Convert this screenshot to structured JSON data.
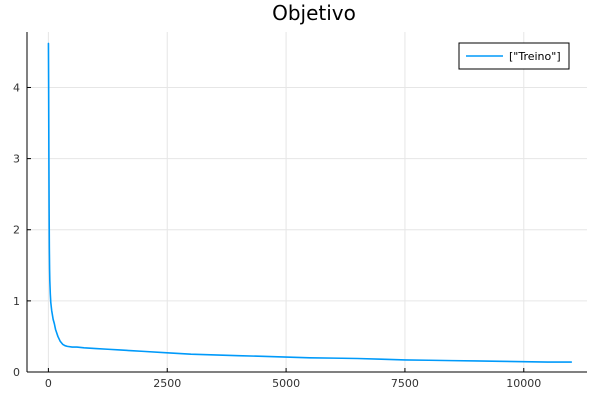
{
  "chart_data": {
    "type": "line",
    "title": "Objetivo",
    "xlabel": "",
    "ylabel": "",
    "xlim": [
      -450,
      11330
    ],
    "ylim": [
      0,
      4.78
    ],
    "xticks": [
      0,
      2500,
      5000,
      7500,
      10000
    ],
    "yticks": [
      0,
      1,
      2,
      3,
      4
    ],
    "grid": true,
    "legend_position": "top-right",
    "series": [
      {
        "name": "[\"Treino\"]",
        "color": "#009AFA",
        "x": [
          1,
          5,
          10,
          15,
          20,
          25,
          30,
          40,
          50,
          60,
          70,
          80,
          90,
          100,
          125,
          150,
          175,
          200,
          250,
          300,
          350,
          400,
          500,
          600,
          750,
          1000,
          1250,
          1500,
          1750,
          2000,
          2500,
          3000,
          3500,
          4000,
          4500,
          5000,
          5500,
          6000,
          6500,
          7000,
          7500,
          8000,
          8500,
          9000,
          9500,
          10000,
          10500,
          11000
        ],
        "y": [
          4.62,
          4.05,
          3.1,
          2.3,
          1.75,
          1.45,
          1.28,
          1.1,
          0.98,
          0.92,
          0.86,
          0.82,
          0.78,
          0.74,
          0.68,
          0.6,
          0.55,
          0.5,
          0.43,
          0.39,
          0.37,
          0.36,
          0.35,
          0.35,
          0.34,
          0.33,
          0.32,
          0.31,
          0.3,
          0.29,
          0.27,
          0.25,
          0.24,
          0.23,
          0.22,
          0.21,
          0.2,
          0.195,
          0.19,
          0.18,
          0.17,
          0.165,
          0.16,
          0.155,
          0.15,
          0.145,
          0.14,
          0.14
        ]
      }
    ]
  }
}
